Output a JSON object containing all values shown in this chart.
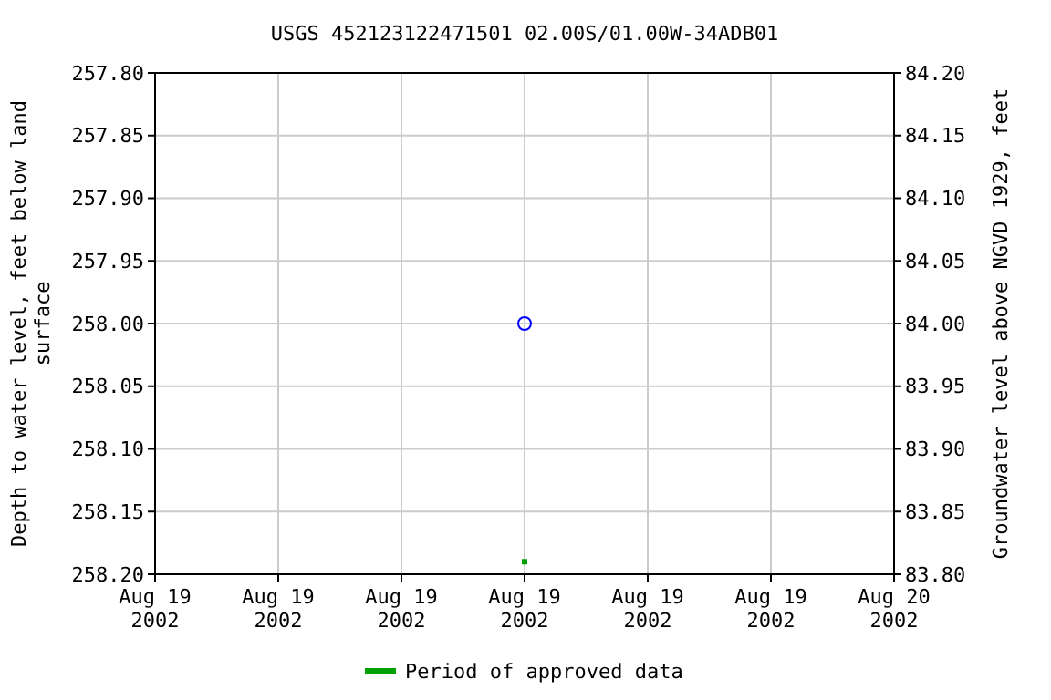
{
  "chart_data": {
    "type": "scatter",
    "title": "USGS 452123122471501 02.00S/01.00W-34ADB01",
    "ylabel": "Depth to water level, feet below land surface",
    "y2label": "Groundwater level above NGVD 1929, feet",
    "xlim": [
      "2002-08-19T00:00",
      "2002-08-20T00:00"
    ],
    "xticks": [
      {
        "value": "2002-08-19T00:00",
        "label": "Aug 19\n2002"
      },
      {
        "value": "2002-08-19T04:00",
        "label": "Aug 19\n2002"
      },
      {
        "value": "2002-08-19T08:00",
        "label": "Aug 19\n2002"
      },
      {
        "value": "2002-08-19T12:00",
        "label": "Aug 19\n2002"
      },
      {
        "value": "2002-08-19T16:00",
        "label": "Aug 19\n2002"
      },
      {
        "value": "2002-08-19T20:00",
        "label": "Aug 19\n2002"
      },
      {
        "value": "2002-08-20T00:00",
        "label": "Aug 20\n2002"
      }
    ],
    "ylim": [
      258.2,
      257.8
    ],
    "yticks": [
      {
        "value": 257.8,
        "label": "257.80"
      },
      {
        "value": 257.85,
        "label": "257.85"
      },
      {
        "value": 257.9,
        "label": "257.90"
      },
      {
        "value": 257.95,
        "label": "257.95"
      },
      {
        "value": 258.0,
        "label": "258.00"
      },
      {
        "value": 258.05,
        "label": "258.05"
      },
      {
        "value": 258.1,
        "label": "258.10"
      },
      {
        "value": 258.15,
        "label": "258.15"
      },
      {
        "value": 258.2,
        "label": "258.20"
      }
    ],
    "y2lim": [
      83.8,
      84.2
    ],
    "y2ticks": [
      {
        "value": 83.8,
        "label": "83.80"
      },
      {
        "value": 83.85,
        "label": "83.85"
      },
      {
        "value": 83.9,
        "label": "83.90"
      },
      {
        "value": 83.95,
        "label": "83.95"
      },
      {
        "value": 84.0,
        "label": "84.00"
      },
      {
        "value": 84.05,
        "label": "84.05"
      },
      {
        "value": 84.1,
        "label": "84.10"
      },
      {
        "value": 84.15,
        "label": "84.15"
      },
      {
        "value": 84.2,
        "label": "84.20"
      }
    ],
    "grid": true,
    "legend": "bottom",
    "series": [
      {
        "color": "#0000ff",
        "marker": "circle",
        "x": [
          "2002-08-19T12:00"
        ],
        "values": [
          258.0
        ]
      },
      {
        "name": "Period of approved data",
        "color": "#00a000",
        "marker": "square",
        "x": [
          "2002-08-19T12:00"
        ],
        "values": [
          258.19
        ]
      }
    ]
  }
}
